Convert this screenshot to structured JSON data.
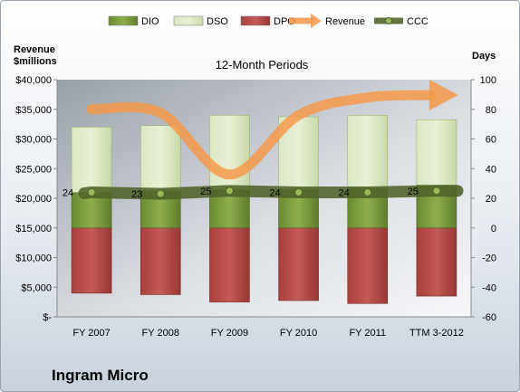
{
  "chart_data": {
    "type": "bar",
    "title": "12-Month Periods",
    "left_axis_label": [
      "Revenue",
      "$millions"
    ],
    "right_axis_label": "Days",
    "categories": [
      "FY 2007",
      "FY 2008",
      "FY 2009",
      "FY 2010",
      "FY 2011",
      "TTM 3-2012"
    ],
    "left_ylim": [
      0,
      40000
    ],
    "left_ticks": [
      "$-",
      "$5,000",
      "$10,000",
      "$15,000",
      "$20,000",
      "$25,000",
      "$30,000",
      "$35,000",
      "$40,000"
    ],
    "right_ylim": [
      -60,
      100
    ],
    "right_ticks": [
      "-60",
      "-40",
      "-20",
      "0",
      "20",
      "40",
      "60",
      "80",
      "100"
    ],
    "legend": [
      "DIO",
      "DSO",
      "DPO",
      "Revenue",
      "CCC"
    ],
    "legend_position": "top",
    "grid": false,
    "series": [
      {
        "name": "DIO",
        "axis": "right",
        "color": "#77933c",
        "values": [
          24,
          25,
          26,
          26,
          27,
          29
        ]
      },
      {
        "name": "DSO",
        "axis": "right",
        "color": "#d7e4bd",
        "values": [
          44,
          44,
          50,
          49,
          49,
          44
        ]
      },
      {
        "name": "DPO",
        "axis": "right",
        "color": "#c0504d",
        "values": [
          -44,
          -45,
          -50,
          -49,
          -51,
          -46
        ]
      },
      {
        "name": "Revenue",
        "axis": "left",
        "color": "#f79646",
        "values": [
          35000,
          34400,
          24000,
          34000,
          37000,
          37400
        ]
      },
      {
        "name": "CCC",
        "axis": "right",
        "color": "#4f6228",
        "values": [
          24,
          23,
          25,
          24,
          24,
          25
        ]
      }
    ],
    "ccc_labels": [
      "24",
      "23",
      "25",
      "24",
      "24",
      "25"
    ]
  },
  "company": "Ingram Micro"
}
